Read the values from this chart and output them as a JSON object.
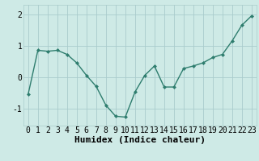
{
  "x": [
    0,
    1,
    2,
    3,
    4,
    5,
    6,
    7,
    8,
    9,
    10,
    11,
    12,
    13,
    14,
    15,
    16,
    17,
    18,
    19,
    20,
    21,
    22,
    23
  ],
  "y": [
    -0.55,
    0.85,
    0.82,
    0.85,
    0.72,
    0.45,
    0.05,
    -0.3,
    -0.9,
    -1.25,
    -1.28,
    -0.48,
    0.05,
    0.35,
    -0.32,
    -0.32,
    0.27,
    0.35,
    0.45,
    0.62,
    0.72,
    1.15,
    1.65,
    1.95
  ],
  "xlabel": "Humidex (Indice chaleur)",
  "ylim": [
    -1.55,
    2.3
  ],
  "xlim": [
    -0.5,
    23.5
  ],
  "yticks": [
    -1,
    0,
    1,
    2
  ],
  "xticks": [
    0,
    1,
    2,
    3,
    4,
    5,
    6,
    7,
    8,
    9,
    10,
    11,
    12,
    13,
    14,
    15,
    16,
    17,
    18,
    19,
    20,
    21,
    22,
    23
  ],
  "line_color": "#2e7d6e",
  "marker": "D",
  "marker_size": 2.0,
  "bg_color": "#ceeae6",
  "grid_color": "#aacccc",
  "xlabel_fontsize": 8,
  "tick_fontsize": 7,
  "linewidth": 1.0
}
